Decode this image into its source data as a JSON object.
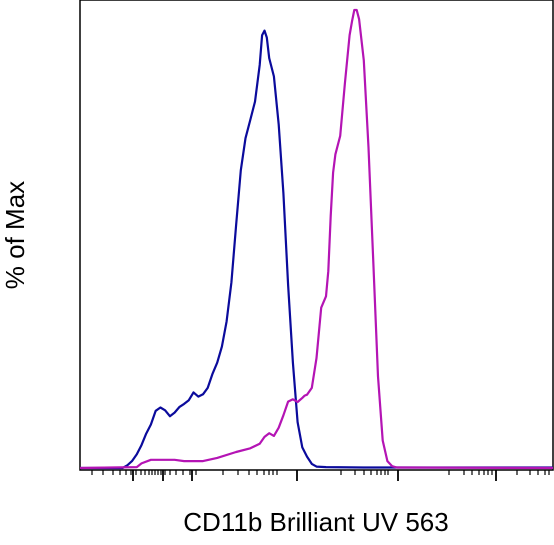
{
  "chart_data": {
    "type": "line",
    "title": "",
    "xlabel": "CD11b Brilliant UV 563",
    "ylabel": "% of Max",
    "x_scale": "biexponential",
    "xticks_shown": false,
    "yticks_shown": false,
    "ylim": [
      0,
      100
    ],
    "legend": "none",
    "grid": false,
    "series": [
      {
        "color": "#0b0b9c",
        "points": [
          [
            0.0,
            0.0
          ],
          [
            0.09,
            0.0
          ],
          [
            0.1,
            0.6
          ],
          [
            0.11,
            1.5
          ],
          [
            0.12,
            3.0
          ],
          [
            0.13,
            5.0
          ],
          [
            0.14,
            7.5
          ],
          [
            0.15,
            9.5
          ],
          [
            0.16,
            12.5
          ],
          [
            0.17,
            13.2
          ],
          [
            0.18,
            12.6
          ],
          [
            0.19,
            11.3
          ],
          [
            0.2,
            12.1
          ],
          [
            0.21,
            13.3
          ],
          [
            0.22,
            14.0
          ],
          [
            0.23,
            14.8
          ],
          [
            0.24,
            16.5
          ],
          [
            0.25,
            15.6
          ],
          [
            0.26,
            16.1
          ],
          [
            0.27,
            17.5
          ],
          [
            0.28,
            20.5
          ],
          [
            0.29,
            23.0
          ],
          [
            0.3,
            26.5
          ],
          [
            0.31,
            32.0
          ],
          [
            0.32,
            40.5
          ],
          [
            0.33,
            53.0
          ],
          [
            0.34,
            65.0
          ],
          [
            0.35,
            72.0
          ],
          [
            0.36,
            76.0
          ],
          [
            0.37,
            80.0
          ],
          [
            0.38,
            88.0
          ],
          [
            0.385,
            94.5
          ],
          [
            0.39,
            95.5
          ],
          [
            0.395,
            94.0
          ],
          [
            0.4,
            89.5
          ],
          [
            0.41,
            85.5
          ],
          [
            0.42,
            75.0
          ],
          [
            0.43,
            60.0
          ],
          [
            0.44,
            40.0
          ],
          [
            0.45,
            23.0
          ],
          [
            0.46,
            10.0
          ],
          [
            0.47,
            4.5
          ],
          [
            0.48,
            2.5
          ],
          [
            0.49,
            0.9
          ],
          [
            0.5,
            0.3
          ],
          [
            0.52,
            0.2
          ],
          [
            0.6,
            0.1
          ],
          [
            1.0,
            0.1
          ]
        ]
      },
      {
        "color": "#b414b4",
        "points": [
          [
            0.0,
            0.0
          ],
          [
            0.12,
            0.2
          ],
          [
            0.13,
            1.0
          ],
          [
            0.15,
            1.8
          ],
          [
            0.2,
            1.8
          ],
          [
            0.22,
            1.5
          ],
          [
            0.26,
            1.5
          ],
          [
            0.29,
            2.2
          ],
          [
            0.33,
            3.5
          ],
          [
            0.36,
            4.3
          ],
          [
            0.38,
            5.3
          ],
          [
            0.39,
            6.8
          ],
          [
            0.4,
            7.6
          ],
          [
            0.41,
            7.0
          ],
          [
            0.42,
            8.8
          ],
          [
            0.43,
            11.5
          ],
          [
            0.44,
            14.5
          ],
          [
            0.45,
            15.0
          ],
          [
            0.46,
            14.4
          ],
          [
            0.47,
            15.3
          ],
          [
            0.475,
            15.8
          ],
          [
            0.48,
            16.0
          ],
          [
            0.49,
            17.5
          ],
          [
            0.5,
            24.0
          ],
          [
            0.51,
            35.0
          ],
          [
            0.52,
            37.5
          ],
          [
            0.525,
            43.0
          ],
          [
            0.53,
            55.0
          ],
          [
            0.535,
            64.5
          ],
          [
            0.54,
            68.5
          ],
          [
            0.55,
            72.5
          ],
          [
            0.56,
            84.0
          ],
          [
            0.57,
            94.5
          ],
          [
            0.575,
            97.5
          ],
          [
            0.58,
            100.0
          ],
          [
            0.585,
            100.0
          ],
          [
            0.59,
            98.0
          ],
          [
            0.6,
            89.0
          ],
          [
            0.61,
            70.0
          ],
          [
            0.62,
            45.0
          ],
          [
            0.63,
            20.0
          ],
          [
            0.64,
            6.0
          ],
          [
            0.65,
            1.5
          ],
          [
            0.66,
            0.4
          ],
          [
            0.67,
            0.1
          ],
          [
            1.0,
            0.0
          ]
        ]
      }
    ]
  }
}
